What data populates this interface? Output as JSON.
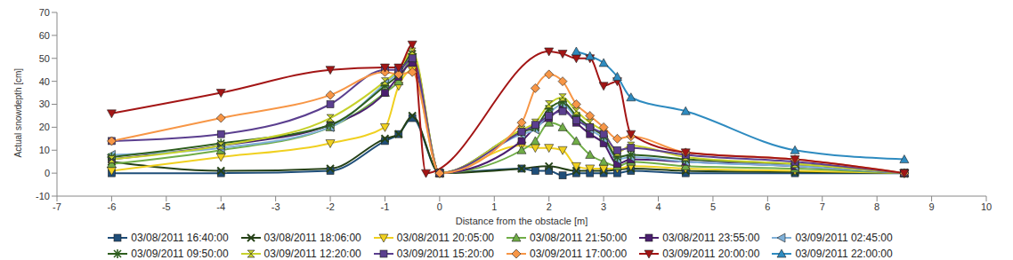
{
  "chart_data": {
    "type": "line",
    "x_label": "Distance from the obstacle [m]",
    "y_label": "Actual snowdepth [cm]",
    "xlim": [
      -7,
      10
    ],
    "xticks": [
      -7,
      -6,
      -5,
      -4,
      -3,
      -2,
      -1,
      0,
      1,
      2,
      3,
      4,
      5,
      6,
      7,
      8,
      9,
      10
    ],
    "ylim": [
      -10,
      70
    ],
    "yticks": [
      -10,
      0,
      10,
      20,
      30,
      40,
      50,
      60,
      70
    ],
    "grid": false,
    "legend": "bottom",
    "line_style": "smooth",
    "series": [
      {
        "name": "03/08/2011 16:40:00",
        "color": "#1f4e79",
        "marker": "square",
        "x": [
          -6,
          -4,
          -2,
          -1,
          -0.75,
          -0.5,
          0,
          1.5,
          1.75,
          2,
          2.25,
          2.5,
          2.75,
          3,
          3.25,
          3.5,
          4.5,
          6.5,
          8.5
        ],
        "values": [
          0,
          0,
          1,
          14,
          17,
          24,
          0,
          2,
          1,
          1,
          -1,
          0,
          0,
          0,
          0,
          1,
          0,
          0,
          0
        ]
      },
      {
        "name": "03/08/2011 18:06:00",
        "color": "#254117",
        "marker": "x",
        "x": [
          -6,
          -4,
          -2,
          -1,
          -0.75,
          -0.5,
          0,
          1.5,
          2,
          2.5,
          3,
          3.5,
          4.5,
          6.5,
          8.5
        ],
        "values": [
          5,
          1,
          2,
          15,
          17,
          25,
          0,
          2,
          3,
          1,
          1,
          2,
          1,
          0.5,
          0
        ]
      },
      {
        "name": "03/08/2011 20:05:00",
        "color": "#f0d020",
        "marker": "triangle-down",
        "x": [
          -6,
          -4,
          -2,
          -1,
          -0.75,
          -0.5,
          0,
          1.5,
          1.75,
          2,
          2.25,
          2.5,
          2.75,
          3,
          3.25,
          3.5,
          4.5,
          6.5,
          8.5
        ],
        "values": [
          1,
          7,
          13,
          20,
          38,
          45,
          0,
          12,
          11,
          11,
          10,
          3,
          2,
          2,
          2,
          3,
          2,
          1,
          0
        ]
      },
      {
        "name": "03/08/2011 21:50:00",
        "color": "#70ad47",
        "marker": "triangle",
        "x": [
          -6,
          -4,
          -2,
          -1,
          -0.75,
          -0.5,
          0,
          1.5,
          1.75,
          2,
          2.25,
          2.5,
          2.75,
          3,
          3.25,
          3.5,
          4.5,
          6.5,
          8.5
        ],
        "values": [
          4,
          10,
          20,
          35,
          40,
          50,
          0,
          10,
          14,
          22,
          20,
          14,
          8,
          5,
          3,
          5,
          3,
          2,
          0
        ]
      },
      {
        "name": "03/08/2011 23:55:00",
        "color": "#4b1f6f",
        "marker": "square",
        "x": [
          -6,
          -4,
          -2,
          -1,
          -0.75,
          -0.5,
          0,
          1.5,
          1.75,
          2,
          2.25,
          2.5,
          2.75,
          3,
          3.25,
          3.5,
          4.5,
          6.5,
          8.5
        ],
        "values": [
          6,
          12,
          21,
          35,
          42,
          48,
          0,
          14,
          20,
          24,
          28,
          22,
          17,
          13,
          4,
          6,
          5,
          3,
          0
        ]
      },
      {
        "name": "03/09/2011 02:45:00",
        "color": "#7fb0d8",
        "marker": "triangle-left",
        "x": [
          -6,
          -4,
          -2,
          -1,
          -0.75,
          -0.5,
          0,
          1.5,
          1.75,
          2,
          2.25,
          2.5,
          2.75,
          3,
          3.25,
          3.5,
          4.5,
          6.5,
          8.5
        ],
        "values": [
          8,
          11,
          20,
          39,
          44,
          50,
          0,
          17,
          19,
          26,
          30,
          24,
          19,
          15,
          6,
          7,
          5,
          3,
          0
        ]
      },
      {
        "name": "03/09/2011 09:50:00",
        "color": "#2e5e1e",
        "marker": "star",
        "x": [
          -6,
          -4,
          -2,
          -1,
          -0.75,
          -0.5,
          0,
          1.5,
          1.75,
          2,
          2.25,
          2.5,
          2.75,
          3,
          3.25,
          3.5,
          4.5,
          6.5,
          8.5
        ],
        "values": [
          7,
          13,
          21,
          38,
          43,
          52,
          0,
          18,
          20,
          28,
          31,
          25,
          20,
          16,
          7,
          8,
          6,
          4,
          0
        ]
      },
      {
        "name": "03/09/2011 12:20:00",
        "color": "#c6d12c",
        "marker": "hourglass",
        "x": [
          -6,
          -4,
          -2,
          -1,
          -0.75,
          -0.5,
          0,
          1.5,
          1.75,
          2,
          2.25,
          2.5,
          2.75,
          3,
          3.25,
          3.5,
          4.5,
          6.5,
          8.5
        ],
        "values": [
          6,
          12,
          24,
          40,
          45,
          53,
          0,
          19,
          22,
          30,
          33,
          27,
          22,
          18,
          9,
          12,
          7,
          4,
          0
        ]
      },
      {
        "name": "03/09/2011 15:20:00",
        "color": "#5b3f8f",
        "marker": "square",
        "x": [
          -6,
          -4,
          -2,
          -1,
          -0.75,
          -0.5,
          0,
          1.5,
          1.75,
          2,
          2.25,
          2.5,
          2.75,
          3,
          3.25,
          3.5,
          4.5,
          6.5,
          8.5
        ],
        "values": [
          14,
          17,
          30,
          45,
          45,
          50,
          0,
          18,
          21,
          25,
          27,
          23,
          20,
          17,
          10,
          11,
          8,
          5,
          0
        ]
      },
      {
        "name": "03/09/2011 17:00:00",
        "color": "#f79646",
        "marker": "diamond",
        "x": [
          -6,
          -4,
          -2,
          -1,
          -0.75,
          -0.5,
          0,
          1.5,
          1.75,
          2,
          2.25,
          2.5,
          2.75,
          3,
          3.25,
          3.5,
          4.5,
          6.5,
          8.5
        ],
        "values": [
          14,
          24,
          34,
          44,
          43,
          44,
          0,
          22,
          37,
          43,
          40,
          30,
          25,
          20,
          15,
          16,
          9,
          6,
          0
        ]
      },
      {
        "name": "03/09/2011 20:00:00",
        "color": "#a31515",
        "marker": "triangle-down",
        "x": [
          -6,
          -4,
          -2,
          -1,
          -0.75,
          -0.5,
          -0.25,
          2,
          2.25,
          2.5,
          2.75,
          3,
          3.25,
          3.5,
          4.5,
          6.5,
          8.5
        ],
        "values": [
          26,
          35,
          45,
          46,
          46,
          56,
          0,
          53,
          52,
          50,
          50,
          38,
          40,
          17,
          9,
          6,
          0
        ]
      },
      {
        "name": "03/09/2011 22:00:00",
        "color": "#2e8bc0",
        "marker": "triangle",
        "x": [
          2.5,
          2.75,
          3,
          3.25,
          3.5,
          4.5,
          6.5,
          8.5
        ],
        "values": [
          53,
          51,
          48,
          42,
          33,
          27,
          10,
          6
        ]
      }
    ]
  }
}
